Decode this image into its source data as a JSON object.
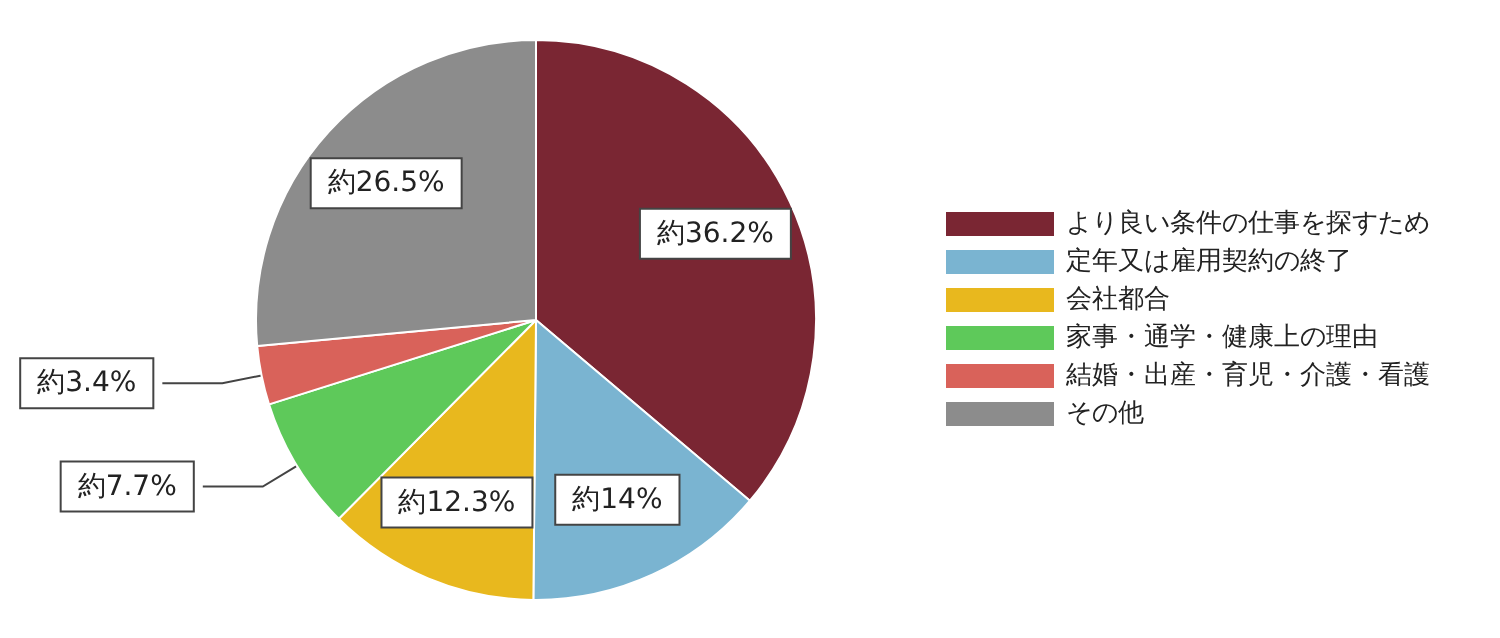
{
  "chart_data": {
    "type": "pie",
    "categories": [
      "より良い条件の仕事を探すため",
      "定年又は雇用契約の終了",
      "会社都合",
      "家事・通学・健康上の理由",
      "結婚・出産・育児・介護・看護",
      "その他"
    ],
    "values": [
      36.2,
      14,
      12.3,
      7.7,
      3.4,
      26.5
    ],
    "colors": [
      "#7a2633",
      "#7ab4d1",
      "#e8b81e",
      "#5ec95a",
      "#d9625a",
      "#8c8c8c"
    ],
    "value_labels": [
      "約36.2%",
      "約14%",
      "約12.3%",
      "約7.7%",
      "約3.4%",
      "約26.5%"
    ],
    "legend": "right"
  }
}
